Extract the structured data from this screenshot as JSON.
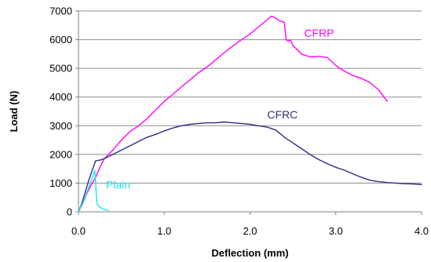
{
  "chart_data": {
    "type": "line",
    "title": "",
    "xlabel": "Deflection (mm)",
    "ylabel": "Load (N)",
    "xlim": [
      0,
      4
    ],
    "ylim": [
      0,
      7000
    ],
    "x_ticks": [
      "0.0",
      "1.0",
      "2.0",
      "3.0",
      "4.0"
    ],
    "y_ticks": [
      "0",
      "1000",
      "2000",
      "3000",
      "4000",
      "5000",
      "6000",
      "7000"
    ],
    "grid": "horizontal",
    "series": [
      {
        "name": "CFRP",
        "color": "#ff00ff",
        "points": [
          [
            0.0,
            0
          ],
          [
            0.05,
            300
          ],
          [
            0.1,
            650
          ],
          [
            0.15,
            950
          ],
          [
            0.2,
            1200
          ],
          [
            0.25,
            1550
          ],
          [
            0.3,
            1850
          ],
          [
            0.4,
            2150
          ],
          [
            0.5,
            2500
          ],
          [
            0.6,
            2800
          ],
          [
            0.7,
            3000
          ],
          [
            0.8,
            3250
          ],
          [
            0.9,
            3550
          ],
          [
            1.0,
            3850
          ],
          [
            1.1,
            4100
          ],
          [
            1.2,
            4350
          ],
          [
            1.3,
            4600
          ],
          [
            1.4,
            4850
          ],
          [
            1.5,
            5050
          ],
          [
            1.6,
            5300
          ],
          [
            1.7,
            5550
          ],
          [
            1.8,
            5780
          ],
          [
            1.9,
            6000
          ],
          [
            2.0,
            6200
          ],
          [
            2.1,
            6450
          ],
          [
            2.2,
            6700
          ],
          [
            2.25,
            6820
          ],
          [
            2.28,
            6780
          ],
          [
            2.35,
            6650
          ],
          [
            2.4,
            6600
          ],
          [
            2.42,
            6000
          ],
          [
            2.45,
            5950
          ],
          [
            2.47,
            6000
          ],
          [
            2.5,
            5800
          ],
          [
            2.55,
            5650
          ],
          [
            2.6,
            5500
          ],
          [
            2.7,
            5400
          ],
          [
            2.8,
            5420
          ],
          [
            2.9,
            5380
          ],
          [
            3.0,
            5100
          ],
          [
            3.1,
            4900
          ],
          [
            3.2,
            4750
          ],
          [
            3.3,
            4650
          ],
          [
            3.4,
            4500
          ],
          [
            3.5,
            4250
          ],
          [
            3.55,
            4050
          ],
          [
            3.6,
            3850
          ]
        ]
      },
      {
        "name": "CFRC",
        "color": "#2e2e86",
        "points": [
          [
            0.0,
            0
          ],
          [
            0.04,
            300
          ],
          [
            0.08,
            700
          ],
          [
            0.12,
            1100
          ],
          [
            0.16,
            1450
          ],
          [
            0.2,
            1780
          ],
          [
            0.25,
            1800
          ],
          [
            0.3,
            1850
          ],
          [
            0.4,
            2000
          ],
          [
            0.5,
            2150
          ],
          [
            0.6,
            2300
          ],
          [
            0.7,
            2450
          ],
          [
            0.8,
            2600
          ],
          [
            0.9,
            2700
          ],
          [
            1.0,
            2820
          ],
          [
            1.1,
            2920
          ],
          [
            1.2,
            3000
          ],
          [
            1.3,
            3050
          ],
          [
            1.4,
            3080
          ],
          [
            1.5,
            3100
          ],
          [
            1.6,
            3100
          ],
          [
            1.7,
            3130
          ],
          [
            1.8,
            3100
          ],
          [
            1.9,
            3080
          ],
          [
            2.0,
            3050
          ],
          [
            2.1,
            3000
          ],
          [
            2.2,
            2950
          ],
          [
            2.3,
            2850
          ],
          [
            2.4,
            2600
          ],
          [
            2.5,
            2400
          ],
          [
            2.6,
            2200
          ],
          [
            2.7,
            2000
          ],
          [
            2.8,
            1820
          ],
          [
            2.9,
            1680
          ],
          [
            3.0,
            1550
          ],
          [
            3.1,
            1450
          ],
          [
            3.2,
            1320
          ],
          [
            3.3,
            1200
          ],
          [
            3.4,
            1100
          ],
          [
            3.5,
            1050
          ],
          [
            3.6,
            1020
          ],
          [
            3.7,
            1000
          ],
          [
            3.8,
            980
          ],
          [
            3.9,
            970
          ],
          [
            4.0,
            950
          ]
        ]
      },
      {
        "name": "Plain",
        "color": "#22e5e8",
        "points": [
          [
            0.0,
            0
          ],
          [
            0.05,
            300
          ],
          [
            0.1,
            700
          ],
          [
            0.15,
            1100
          ],
          [
            0.19,
            1450
          ],
          [
            0.2,
            1000
          ],
          [
            0.21,
            500
          ],
          [
            0.22,
            250
          ],
          [
            0.25,
            150
          ],
          [
            0.3,
            80
          ],
          [
            0.35,
            50
          ]
        ]
      }
    ],
    "annotations": [
      {
        "text": "CFRP",
        "color": "#ff00ff",
        "x": 2.63,
        "y": 6100
      },
      {
        "text": "CFRC",
        "color": "#2e2e86",
        "x": 2.2,
        "y": 3250
      },
      {
        "text": "Plain",
        "color": "#22e5e8",
        "x": 0.32,
        "y": 800
      }
    ]
  }
}
